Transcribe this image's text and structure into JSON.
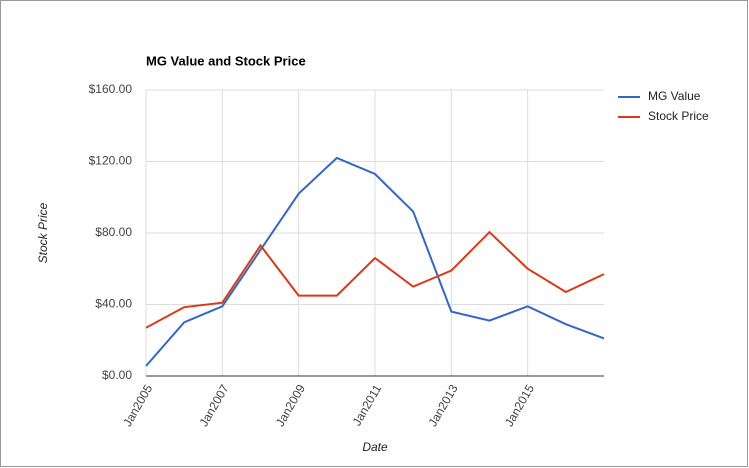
{
  "chart_data": {
    "type": "line",
    "title": "MG Value and Stock Price",
    "x_label": "Date",
    "y_label": "Stock Price",
    "x": [
      2005,
      2006,
      2007,
      2008,
      2009,
      2010,
      2011,
      2012,
      2013,
      2014,
      2015,
      2016,
      2017
    ],
    "series": [
      {
        "name": "MG Value",
        "color": "#3366cc",
        "values": [
          5.6,
          30,
          39,
          70.5,
          102,
          122,
          113,
          92,
          36,
          31,
          39,
          29,
          21
        ]
      },
      {
        "name": "Stock Price",
        "color": "#dc3912",
        "values": [
          27,
          38.5,
          41,
          73,
          45,
          45,
          66,
          50,
          59,
          80.5,
          60,
          47,
          57
        ]
      }
    ],
    "xlim": [
      2005,
      2017
    ],
    "xticks": [
      {
        "value": 2005,
        "label": "Jan2005"
      },
      {
        "value": 2007,
        "label": "Jan2007"
      },
      {
        "value": 2009,
        "label": "Jan2009"
      },
      {
        "value": 2011,
        "label": "Jan2011"
      },
      {
        "value": 2013,
        "label": "Jan2013"
      },
      {
        "value": 2015,
        "label": "Jan2015"
      }
    ],
    "ylim": [
      0,
      160
    ],
    "yticks": [
      {
        "value": 0,
        "label": "$0.00"
      },
      {
        "value": 40,
        "label": "$40.00"
      },
      {
        "value": 80,
        "label": "$80.00"
      },
      {
        "value": 120,
        "label": "$120.00"
      },
      {
        "value": 160,
        "label": "$160.00"
      }
    ],
    "grid": true,
    "legend": "right"
  }
}
